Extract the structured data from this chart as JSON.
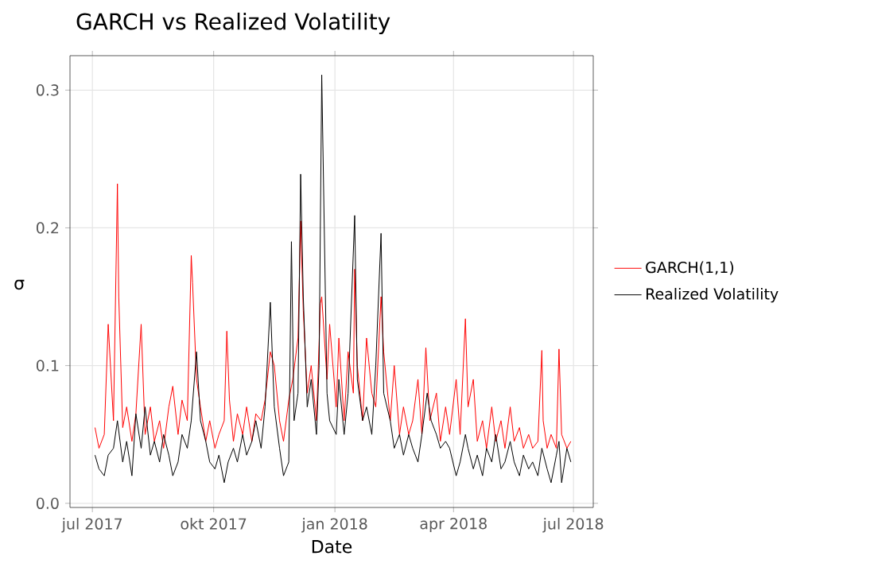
{
  "chart_data": {
    "type": "line",
    "title": "GARCH vs Realized Volatility",
    "xlabel": "Date",
    "ylabel": "σ",
    "xlim": [
      "2017-06-14",
      "2018-07-16"
    ],
    "ylim": [
      -0.003,
      0.325
    ],
    "xticks": [
      {
        "value": "2017-07-01",
        "label": "jul 2017"
      },
      {
        "value": "2017-10-01",
        "label": "okt 2017"
      },
      {
        "value": "2018-01-01",
        "label": "jan 2018"
      },
      {
        "value": "2018-04-01",
        "label": "apr 2018"
      },
      {
        "value": "2018-07-01",
        "label": "jul 2018"
      }
    ],
    "yticks": [
      {
        "value": 0,
        "label": "0.0"
      },
      {
        "value": 0.1,
        "label": "0.1"
      },
      {
        "value": 0.2,
        "label": "0.2"
      },
      {
        "value": 0.3,
        "label": "0.3"
      }
    ],
    "grid": true,
    "legend": "right",
    "series": [
      {
        "name": "GARCH(1,1)",
        "color": "#ff0000",
        "x": [
          "2017-07-03",
          "2017-07-06",
          "2017-07-10",
          "2017-07-13",
          "2017-07-17",
          "2017-07-20",
          "2017-07-21",
          "2017-07-24",
          "2017-07-27",
          "2017-07-31",
          "2017-08-03",
          "2017-08-07",
          "2017-08-10",
          "2017-08-14",
          "2017-08-17",
          "2017-08-21",
          "2017-08-24",
          "2017-08-28",
          "2017-08-31",
          "2017-09-04",
          "2017-09-07",
          "2017-09-11",
          "2017-09-14",
          "2017-09-15",
          "2017-09-18",
          "2017-09-21",
          "2017-09-25",
          "2017-09-28",
          "2017-10-02",
          "2017-10-05",
          "2017-10-09",
          "2017-10-11",
          "2017-10-13",
          "2017-10-16",
          "2017-10-19",
          "2017-10-23",
          "2017-10-26",
          "2017-10-30",
          "2017-11-02",
          "2017-11-06",
          "2017-11-09",
          "2017-11-13",
          "2017-11-16",
          "2017-11-20",
          "2017-11-23",
          "2017-11-27",
          "2017-11-30",
          "2017-12-04",
          "2017-12-06",
          "2017-12-08",
          "2017-12-11",
          "2017-12-14",
          "2017-12-18",
          "2017-12-21",
          "2017-12-22",
          "2017-12-26",
          "2017-12-28",
          "2018-01-02",
          "2018-01-04",
          "2018-01-08",
          "2018-01-11",
          "2018-01-15",
          "2018-01-16",
          "2018-01-18",
          "2018-01-22",
          "2018-01-25",
          "2018-01-29",
          "2018-02-01",
          "2018-02-05",
          "2018-02-07",
          "2018-02-12",
          "2018-02-15",
          "2018-02-19",
          "2018-02-22",
          "2018-02-26",
          "2018-03-01",
          "2018-03-05",
          "2018-03-08",
          "2018-03-11",
          "2018-03-14",
          "2018-03-19",
          "2018-03-22",
          "2018-03-26",
          "2018-03-29",
          "2018-04-03",
          "2018-04-06",
          "2018-04-10",
          "2018-04-12",
          "2018-04-16",
          "2018-04-19",
          "2018-04-23",
          "2018-04-26",
          "2018-04-30",
          "2018-05-03",
          "2018-05-07",
          "2018-05-10",
          "2018-05-14",
          "2018-05-17",
          "2018-05-21",
          "2018-05-24",
          "2018-05-28",
          "2018-05-31",
          "2018-06-04",
          "2018-06-07",
          "2018-06-08",
          "2018-06-11",
          "2018-06-14",
          "2018-06-18",
          "2018-06-20",
          "2018-06-22",
          "2018-06-26",
          "2018-06-29"
        ],
        "values": [
          0.055,
          0.04,
          0.05,
          0.13,
          0.06,
          0.232,
          0.15,
          0.055,
          0.07,
          0.045,
          0.065,
          0.13,
          0.05,
          0.07,
          0.045,
          0.06,
          0.04,
          0.07,
          0.085,
          0.05,
          0.075,
          0.06,
          0.18,
          0.16,
          0.09,
          0.07,
          0.045,
          0.06,
          0.04,
          0.05,
          0.06,
          0.125,
          0.075,
          0.045,
          0.065,
          0.05,
          0.07,
          0.045,
          0.065,
          0.06,
          0.075,
          0.11,
          0.1,
          0.06,
          0.045,
          0.075,
          0.09,
          0.12,
          0.205,
          0.14,
          0.08,
          0.1,
          0.06,
          0.145,
          0.15,
          0.09,
          0.13,
          0.07,
          0.12,
          0.06,
          0.11,
          0.08,
          0.17,
          0.1,
          0.06,
          0.12,
          0.08,
          0.07,
          0.15,
          0.11,
          0.06,
          0.1,
          0.05,
          0.07,
          0.05,
          0.06,
          0.09,
          0.05,
          0.113,
          0.06,
          0.08,
          0.045,
          0.07,
          0.05,
          0.09,
          0.05,
          0.134,
          0.07,
          0.09,
          0.045,
          0.06,
          0.04,
          0.07,
          0.045,
          0.06,
          0.04,
          0.07,
          0.045,
          0.055,
          0.04,
          0.05,
          0.04,
          0.045,
          0.111,
          0.06,
          0.04,
          0.05,
          0.04,
          0.112,
          0.05,
          0.04,
          0.045
        ]
      },
      {
        "name": "Realized Volatility",
        "color": "#000000",
        "x": [
          "2017-07-03",
          "2017-07-06",
          "2017-07-10",
          "2017-07-13",
          "2017-07-17",
          "2017-07-20",
          "2017-07-24",
          "2017-07-27",
          "2017-07-31",
          "2017-08-03",
          "2017-08-07",
          "2017-08-10",
          "2017-08-14",
          "2017-08-17",
          "2017-08-21",
          "2017-08-24",
          "2017-08-28",
          "2017-08-31",
          "2017-09-04",
          "2017-09-07",
          "2017-09-11",
          "2017-09-14",
          "2017-09-18",
          "2017-09-21",
          "2017-09-25",
          "2017-09-28",
          "2017-10-02",
          "2017-10-05",
          "2017-10-09",
          "2017-10-12",
          "2017-10-16",
          "2017-10-19",
          "2017-10-23",
          "2017-10-26",
          "2017-10-30",
          "2017-11-02",
          "2017-11-06",
          "2017-11-09",
          "2017-11-13",
          "2017-11-16",
          "2017-11-20",
          "2017-11-23",
          "2017-11-27",
          "2017-11-29",
          "2017-12-01",
          "2017-12-04",
          "2017-12-06",
          "2017-12-08",
          "2017-12-11",
          "2017-12-14",
          "2017-12-18",
          "2017-12-20",
          "2017-12-22",
          "2017-12-26",
          "2017-12-28",
          "2018-01-02",
          "2018-01-04",
          "2018-01-08",
          "2018-01-11",
          "2018-01-16",
          "2018-01-18",
          "2018-01-22",
          "2018-01-25",
          "2018-01-29",
          "2018-02-01",
          "2018-02-05",
          "2018-02-07",
          "2018-02-12",
          "2018-02-15",
          "2018-02-19",
          "2018-02-22",
          "2018-02-26",
          "2018-03-01",
          "2018-03-05",
          "2018-03-08",
          "2018-03-12",
          "2018-03-15",
          "2018-03-19",
          "2018-03-22",
          "2018-03-26",
          "2018-03-29",
          "2018-04-03",
          "2018-04-06",
          "2018-04-10",
          "2018-04-12",
          "2018-04-16",
          "2018-04-19",
          "2018-04-23",
          "2018-04-26",
          "2018-04-30",
          "2018-05-03",
          "2018-05-07",
          "2018-05-10",
          "2018-05-14",
          "2018-05-17",
          "2018-05-21",
          "2018-05-24",
          "2018-05-28",
          "2018-05-31",
          "2018-06-04",
          "2018-06-07",
          "2018-06-11",
          "2018-06-14",
          "2018-06-18",
          "2018-06-20",
          "2018-06-22",
          "2018-06-26",
          "2018-06-29"
        ],
        "values": [
          0.035,
          0.025,
          0.02,
          0.035,
          0.04,
          0.06,
          0.03,
          0.045,
          0.02,
          0.065,
          0.04,
          0.07,
          0.035,
          0.045,
          0.03,
          0.05,
          0.035,
          0.02,
          0.03,
          0.05,
          0.04,
          0.06,
          0.11,
          0.06,
          0.045,
          0.03,
          0.025,
          0.035,
          0.015,
          0.03,
          0.04,
          0.03,
          0.05,
          0.035,
          0.045,
          0.06,
          0.04,
          0.07,
          0.146,
          0.07,
          0.04,
          0.02,
          0.03,
          0.19,
          0.06,
          0.08,
          0.239,
          0.15,
          0.07,
          0.09,
          0.05,
          0.1,
          0.311,
          0.08,
          0.06,
          0.05,
          0.09,
          0.05,
          0.08,
          0.209,
          0.09,
          0.06,
          0.07,
          0.05,
          0.1,
          0.196,
          0.08,
          0.06,
          0.04,
          0.05,
          0.035,
          0.05,
          0.04,
          0.03,
          0.05,
          0.08,
          0.06,
          0.05,
          0.04,
          0.045,
          0.04,
          0.02,
          0.03,
          0.05,
          0.04,
          0.025,
          0.035,
          0.02,
          0.04,
          0.03,
          0.05,
          0.025,
          0.03,
          0.045,
          0.03,
          0.02,
          0.035,
          0.025,
          0.03,
          0.02,
          0.04,
          0.025,
          0.015,
          0.035,
          0.045,
          0.015,
          0.04,
          0.03
        ]
      }
    ]
  }
}
